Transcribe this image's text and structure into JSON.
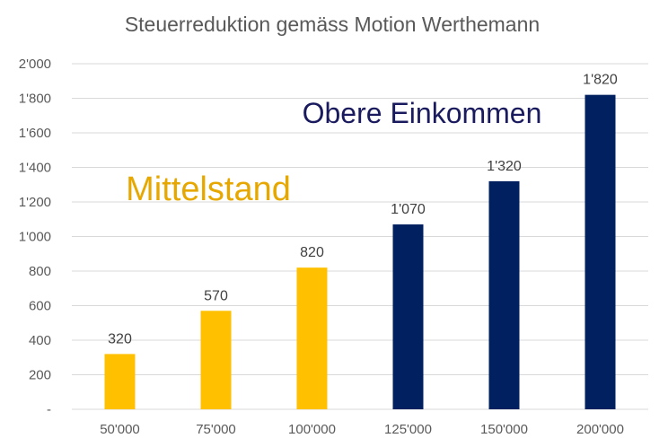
{
  "chart_data": {
    "type": "bar",
    "title": "Steuerreduktion gemäss Motion Werthemann",
    "xlabel": "",
    "ylabel": "",
    "categories": [
      "50'000",
      "75'000",
      "100'000",
      "125'000",
      "150'000",
      "200'000"
    ],
    "values": [
      320,
      570,
      820,
      1070,
      1320,
      1820
    ],
    "data_labels": [
      "320",
      "570",
      "820",
      "1'070",
      "1'320",
      "1'820"
    ],
    "ylim": [
      0,
      2000
    ],
    "y_ticks": [
      0,
      200,
      400,
      600,
      800,
      1000,
      1200,
      1400,
      1600,
      1800,
      2000
    ],
    "y_tick_labels": [
      "-",
      "200",
      "400",
      "600",
      "800",
      "1'000",
      "1'200",
      "1'400",
      "1'600",
      "1'800",
      "2'000"
    ],
    "grid": true,
    "legend": "none",
    "bar_colors": [
      "#FFC000",
      "#FFC000",
      "#FFC000",
      "#002060",
      "#002060",
      "#002060"
    ],
    "annotations": [
      {
        "text": "Mittelstand",
        "color": "#E6A800"
      },
      {
        "text": "Obere Einkommen",
        "color": "#1A1A5E"
      }
    ]
  }
}
